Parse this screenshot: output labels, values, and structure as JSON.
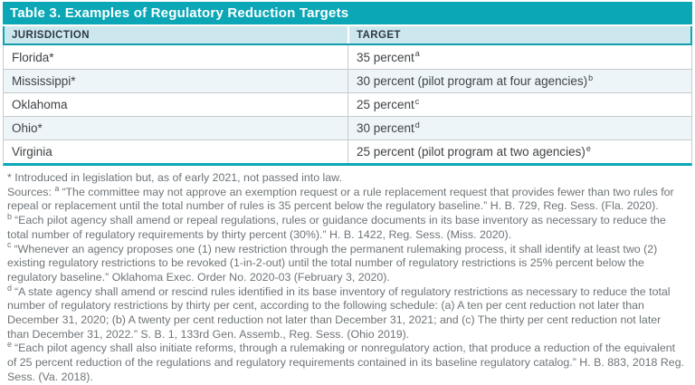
{
  "colors": {
    "teal_accent": "#0BA7B6",
    "header_row_bg": "#CDE7EE",
    "alt_row_bg": "#EDF5F8",
    "body_text": "#3E4347",
    "footnote_text": "#6E7478"
  },
  "table": {
    "title": "Table 3. Examples of Regulatory Reduction Targets",
    "columns": [
      "JURISDICTION",
      "TARGET"
    ],
    "rows": [
      {
        "jurisdiction": "Florida*",
        "target": "35 percent",
        "note": "a"
      },
      {
        "jurisdiction": "Mississippi*",
        "target": "30 percent (pilot program at four agencies)",
        "note": "b"
      },
      {
        "jurisdiction": "Oklahoma",
        "target": "25 percent",
        "note": "c"
      },
      {
        "jurisdiction": "Ohio*",
        "target": "30 percent",
        "note": "d"
      },
      {
        "jurisdiction": "Virginia",
        "target": "25 percent (pilot program at two agencies)",
        "note": "e"
      }
    ]
  },
  "footnotes": {
    "asterisk": "* Introduced in legislation but, as of early 2021, not passed into law.",
    "sources_label": "Sources: ",
    "notes": [
      {
        "sup": "a",
        "text": "“The committee may not approve an exemption request or a rule replacement request that provides fewer than two rules for repeal or replacement until the total number of rules is 35 percent below the regulatory baseline.” H. B. 729, Reg. Sess. (Fla. 2020)."
      },
      {
        "sup": "b",
        "text": "“Each pilot agency shall amend or repeal regulations, rules or guidance documents in its base inventory as necessary to reduce the total number of regulatory requirements by thirty percent (30%).” H. B. 1422, Reg. Sess. (Miss. 2020)."
      },
      {
        "sup": "c",
        "text": "“Whenever an agency proposes one (1) new restriction through the permanent rulemaking process, it shall identify at least two (2) existing regulatory restrictions to be revoked (1-in-2-out) until the total number of regulatory restrictions is 25% percent below the regulatory baseline.” Oklahoma Exec. Order No. 2020-03 (February 3, 2020)."
      },
      {
        "sup": "d",
        "text": "“A state agency shall amend or rescind rules identified in its base inventory of regulatory restrictions as necessary to reduce the total number of regulatory restrictions by thirty per cent, according to the following schedule: (a) A ten per cent reduction not later than December 31, 2020; (b) A twenty per cent reduction not later than December 31, 2021; and (c) The thirty per cent reduction not later than December 31, 2022.” S. B. 1, 133rd Gen. Assemb., Reg. Sess. (Ohio 2019)."
      },
      {
        "sup": "e",
        "text": "“Each pilot agency shall also initiate reforms, through a rulemaking or nonregulatory action, that produce a reduction of the equivalent of 25 percent reduction of the regulations and regulatory requirements contained in its baseline regulatory catalog.” H. B. 883, 2018 Reg. Sess. (Va. 2018)."
      }
    ]
  }
}
